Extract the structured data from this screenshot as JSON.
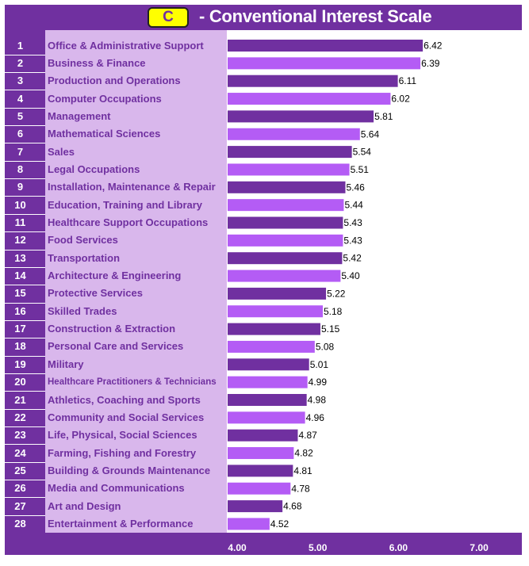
{
  "header": {
    "letter": "C",
    "title": "- Conventional Interest Scale"
  },
  "colors": {
    "frame": "#7030a0",
    "label_panel": "#d9b7ec",
    "bar_dark": "#7030a0",
    "bar_light": "#b45cf5",
    "badge": "#ffff00"
  },
  "chart_data": {
    "type": "bar",
    "orientation": "horizontal",
    "xlim": [
      4.0,
      7.0
    ],
    "ticks": [
      "4.00",
      "5.00",
      "6.00",
      "7.00"
    ],
    "categories": [
      {
        "rank": "1",
        "label": "Office & Administrative Support",
        "value": 6.42,
        "value_label": "6.42"
      },
      {
        "rank": "2",
        "label": "Business & Finance",
        "value": 6.39,
        "value_label": "6.39"
      },
      {
        "rank": "3",
        "label": "Production and Operations",
        "value": 6.11,
        "value_label": "6.11"
      },
      {
        "rank": "4",
        "label": "Computer Occupations",
        "value": 6.02,
        "value_label": "6.02"
      },
      {
        "rank": "5",
        "label": "Management",
        "value": 5.81,
        "value_label": "5.81"
      },
      {
        "rank": "6",
        "label": "Mathematical Sciences",
        "value": 5.64,
        "value_label": "5.64"
      },
      {
        "rank": "7",
        "label": "Sales",
        "value": 5.54,
        "value_label": "5.54"
      },
      {
        "rank": "8",
        "label": "Legal Occupations",
        "value": 5.51,
        "value_label": "5.51"
      },
      {
        "rank": "9",
        "label": "Installation, Maintenance & Repair",
        "value": 5.46,
        "value_label": "5.46"
      },
      {
        "rank": "10",
        "label": "Education, Training and Library",
        "value": 5.44,
        "value_label": "5.44"
      },
      {
        "rank": "11",
        "label": "Healthcare Support Occupations",
        "value": 5.43,
        "value_label": "5.43"
      },
      {
        "rank": "12",
        "label": "Food Services",
        "value": 5.43,
        "value_label": "5.43"
      },
      {
        "rank": "13",
        "label": "Transportation",
        "value": 5.42,
        "value_label": "5.42"
      },
      {
        "rank": "14",
        "label": "Architecture & Engineering",
        "value": 5.4,
        "value_label": "5.40"
      },
      {
        "rank": "15",
        "label": "Protective Services",
        "value": 5.22,
        "value_label": "5.22"
      },
      {
        "rank": "16",
        "label": "Skilled Trades",
        "value": 5.18,
        "value_label": "5.18"
      },
      {
        "rank": "17",
        "label": "Construction & Extraction",
        "value": 5.15,
        "value_label": "5.15"
      },
      {
        "rank": "18",
        "label": "Personal Care and Services",
        "value": 5.08,
        "value_label": "5.08"
      },
      {
        "rank": "19",
        "label": "Military",
        "value": 5.01,
        "value_label": "5.01"
      },
      {
        "rank": "20",
        "label": "Healthcare Practitioners &  Technicians",
        "value": 4.99,
        "value_label": "4.99"
      },
      {
        "rank": "21",
        "label": "Athletics, Coaching and Sports",
        "value": 4.98,
        "value_label": "4.98"
      },
      {
        "rank": "22",
        "label": "Community and Social Services",
        "value": 4.96,
        "value_label": "4.96"
      },
      {
        "rank": "23",
        "label": "Life, Physical, Social Sciences",
        "value": 4.87,
        "value_label": "4.87"
      },
      {
        "rank": "24",
        "label": "Farming, Fishing and Forestry",
        "value": 4.82,
        "value_label": "4.82"
      },
      {
        "rank": "25",
        "label": "Building & Grounds Maintenance",
        "value": 4.81,
        "value_label": "4.81"
      },
      {
        "rank": "26",
        "label": "Media and Communications",
        "value": 4.78,
        "value_label": "4.78"
      },
      {
        "rank": "27",
        "label": "Art and Design",
        "value": 4.68,
        "value_label": "4.68"
      },
      {
        "rank": "28",
        "label": "Entertainment & Performance",
        "value": 4.52,
        "value_label": "4.52"
      }
    ]
  }
}
